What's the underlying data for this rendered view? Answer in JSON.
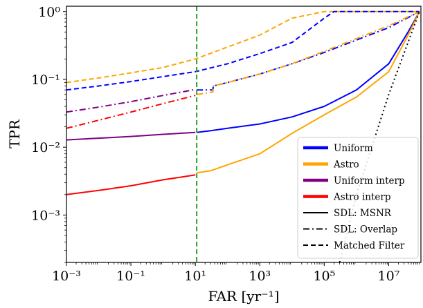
{
  "chart_data": {
    "type": "line",
    "xlabel": "FAR [yr⁻¹]",
    "ylabel": "TPR",
    "xscale": "log",
    "yscale": "log",
    "xlim": [
      0.001,
      100000000
    ],
    "ylim": [
      0.0002,
      1.2
    ],
    "grid": false,
    "legend_position": "lower-right",
    "x_ticks": [
      {
        "value": 0.001,
        "label": "10⁻³"
      },
      {
        "value": 0.1,
        "label": "10⁻¹"
      },
      {
        "value": 10,
        "label": "10¹"
      },
      {
        "value": 1000,
        "label": "10³"
      },
      {
        "value": 100000,
        "label": "10⁵"
      },
      {
        "value": 10000000,
        "label": "10⁷"
      }
    ],
    "y_ticks": [
      {
        "value": 0.001,
        "label": "10⁻³"
      },
      {
        "value": 0.01,
        "label": "10⁻²"
      },
      {
        "value": 0.1,
        "label": "10⁻¹"
      },
      {
        "value": 1,
        "label": "10⁰"
      }
    ],
    "vertical_line": {
      "x": 11,
      "color": "#2ca02c",
      "style": "dashed"
    },
    "legend": [
      {
        "label": "Uniform",
        "kind": "color",
        "color": "#0000ff"
      },
      {
        "label": "Astro",
        "kind": "color",
        "color": "#ffa500"
      },
      {
        "label": "Uniform interp",
        "kind": "color",
        "color": "#800080"
      },
      {
        "label": "Astro interp",
        "kind": "color",
        "color": "#ff0000"
      },
      {
        "label": "SDL: MSNR",
        "kind": "style",
        "style": "solid"
      },
      {
        "label": "SDL: Overlap",
        "kind": "style",
        "style": "dashdot"
      },
      {
        "label": "Matched Filter",
        "kind": "style",
        "style": "dashed"
      }
    ],
    "series": [
      {
        "color": "#800080",
        "style": "solid",
        "x": [
          0.001,
          0.01,
          0.1,
          1,
          10
        ],
        "y": [
          0.0128,
          0.0136,
          0.0144,
          0.0155,
          0.0165
        ]
      },
      {
        "color": "#0000ff",
        "style": "solid",
        "x": [
          11,
          30,
          100,
          1000,
          10000,
          100000,
          1000000,
          10000000,
          40000000,
          90000000
        ],
        "y": [
          0.0165,
          0.0175,
          0.019,
          0.022,
          0.028,
          0.04,
          0.07,
          0.17,
          0.5,
          1.0
        ]
      },
      {
        "color": "#ff0000",
        "style": "solid",
        "x": [
          0.001,
          0.01,
          0.1,
          1,
          10
        ],
        "y": [
          0.002,
          0.0023,
          0.0027,
          0.0033,
          0.0039
        ]
      },
      {
        "color": "#ffa500",
        "style": "solid",
        "x": [
          11,
          30,
          100,
          1000,
          10000,
          100000,
          1000000,
          10000000,
          40000000,
          90000000
        ],
        "y": [
          0.0042,
          0.0045,
          0.0055,
          0.008,
          0.016,
          0.03,
          0.055,
          0.13,
          0.45,
          1.0
        ]
      },
      {
        "color": "#800080",
        "style": "dashdot",
        "x": [
          0.001,
          0.01,
          0.1,
          1,
          10
        ],
        "y": [
          0.033,
          0.039,
          0.047,
          0.058,
          0.071
        ]
      },
      {
        "color": "#0000ff",
        "style": "dashdot",
        "x": [
          11,
          35,
          36,
          100,
          1000,
          10000,
          100000,
          1000000,
          10000000,
          90000000
        ],
        "y": [
          0.07,
          0.07,
          0.08,
          0.09,
          0.12,
          0.17,
          0.25,
          0.38,
          0.58,
          1.0
        ]
      },
      {
        "color": "#ff0000",
        "style": "dashdot",
        "x": [
          0.001,
          0.01,
          0.1,
          1,
          10
        ],
        "y": [
          0.019,
          0.025,
          0.033,
          0.044,
          0.058
        ]
      },
      {
        "color": "#ffa500",
        "style": "dashdot",
        "x": [
          11,
          35,
          36,
          100,
          1000,
          10000,
          100000,
          1000000,
          10000000,
          90000000
        ],
        "y": [
          0.06,
          0.065,
          0.08,
          0.09,
          0.12,
          0.17,
          0.26,
          0.4,
          0.62,
          1.0
        ]
      },
      {
        "color": "#ffa500",
        "style": "dashed",
        "x": [
          0.001,
          0.01,
          0.1,
          1,
          10,
          100,
          1000,
          10000,
          100000,
          200000,
          90000000
        ],
        "y": [
          0.09,
          0.105,
          0.125,
          0.15,
          0.2,
          0.3,
          0.45,
          0.8,
          1.0,
          1.0,
          1.0
        ]
      },
      {
        "color": "#0000ff",
        "style": "dashed",
        "x": [
          0.001,
          0.01,
          0.1,
          1,
          10,
          100,
          1000,
          10000,
          100000,
          200000,
          90000000
        ],
        "y": [
          0.07,
          0.08,
          0.093,
          0.11,
          0.13,
          0.17,
          0.24,
          0.35,
          0.8,
          1.0,
          1.0
        ]
      },
      {
        "color": "#000000",
        "style": "dotted",
        "x": [
          300000,
          1000000,
          10000000,
          90000000
        ],
        "y": [
          0.0002,
          0.002,
          0.06,
          1.0
        ]
      }
    ]
  }
}
